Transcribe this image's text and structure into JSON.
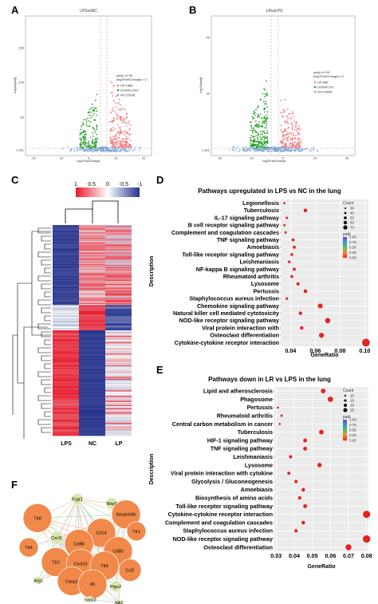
{
  "panels": {
    "a": "A",
    "b": "B",
    "c": "C",
    "d": "D",
    "e": "E",
    "f": "F"
  },
  "volcano_a": {
    "title": "LPSvsNC",
    "xlabel": "log2FoldChange",
    "ylabel": "-log10(padj)",
    "legend_title": [
      "padj<=0.05",
      "|log2FoldChange|>=1"
    ],
    "legend": [
      "UP:1886",
      "DOWN:1401",
      "NO:23938"
    ],
    "yticks": [
      "1.301",
      "50",
      "100",
      "150"
    ],
    "xticks": [
      "-20",
      "-10",
      "0",
      "10",
      "20"
    ],
    "colors": {
      "up": "#f08080",
      "down": "#2ca02c",
      "no": "#7fa8d8"
    }
  },
  "volcano_b": {
    "title": "LRvsLPS",
    "xlabel": "log2FoldChange",
    "ylabel": "-log10(padj)",
    "legend_title": [
      "padj<=0.05",
      "|log2FoldChange|>=1"
    ],
    "legend": [
      "UP:686",
      "DOWN:791",
      "NO:25665"
    ],
    "yticks": [
      "1.301",
      "20",
      "40"
    ],
    "xticks": [
      "-20",
      "-10",
      "0",
      "10",
      "20"
    ],
    "colors": {
      "up": "#f08080",
      "down": "#2ca02c",
      "no": "#7fa8d8"
    }
  },
  "heatmap": {
    "colorbar_ticks": [
      "1",
      "0.5",
      "0",
      "-0.5",
      "-1"
    ],
    "columns": [
      "LPS",
      "NC",
      "LP"
    ]
  },
  "chart_data": [
    {
      "type": "scatter",
      "title": "Pathways upregulated in LPS vs NC in the lung",
      "xlabel": "GeneRatio",
      "ylabel": "Description",
      "xticks": [
        "0.04",
        "0.06",
        "0.08",
        "0.10"
      ],
      "xlim": [
        0.032,
        0.103
      ],
      "legend_count_title": "Count",
      "legend_count": [
        "30",
        "40",
        "50",
        "60",
        "70"
      ],
      "legend_padj_title": "padj",
      "legend_padj": [
        "1.00",
        "0.75",
        "0.50",
        "0.25",
        "0.00"
      ],
      "categories": [
        "Legionellosis",
        "Tuberculosis",
        "IL-17 signaling pathway",
        "B cell receptor signaling pathway",
        "Complement and coagulation cascades",
        "TNF signaling pathway",
        "Amoebiasis",
        "Toll-like receptor signaling pathway",
        "Leishmaniasis",
        "NF-kappa B signaling pathway",
        "Rheumatoid arthritis",
        "Lysosome",
        "Pertussis",
        "Staphylococcus aureus infection",
        "Chemokine signaling pathway",
        "Natural killer cell mediated cytotoxicity",
        "NOD-like receptor signaling pathway",
        "Viral protein interaction with",
        "Osteoclast differentiation",
        "Cytokine-cytokine receptor interaction"
      ],
      "x": [
        0.035,
        0.052,
        0.037,
        0.035,
        0.036,
        0.042,
        0.043,
        0.041,
        0.039,
        0.043,
        0.041,
        0.046,
        0.052,
        0.037,
        0.064,
        0.048,
        0.07,
        0.049,
        0.065,
        0.101
      ],
      "count": [
        26,
        40,
        28,
        27,
        27,
        33,
        34,
        32,
        30,
        34,
        32,
        36,
        40,
        29,
        50,
        38,
        55,
        38,
        52,
        78
      ]
    },
    {
      "type": "scatter",
      "title": "Pathways down in LR vs LPS in the lung",
      "xlabel": "GeneRatio",
      "ylabel": "Description",
      "xticks": [
        "0.03",
        "0.04",
        "0.05",
        "0.06",
        "0.07",
        "0.08"
      ],
      "xlim": [
        0.029,
        0.081
      ],
      "legend_count_title": "Count",
      "legend_count": [
        "10",
        "15",
        "20",
        "25"
      ],
      "legend_padj_title": "padj",
      "legend_padj": [
        "1.00",
        "0.75",
        "0.50",
        "0.25",
        "0.00"
      ],
      "categories": [
        "Lipid and atherosclerosis",
        "Phagosome",
        "Pertussis",
        "Rheumatoid arthritis",
        "Central carbon metabolism in cancer",
        "Tuberculosis",
        "HIF-1 signaling pathway",
        "TNF signaling pathway",
        "Leishmaniasis",
        "Lysosome",
        "Viral protein interaction with cytokine",
        "Glycolysis / Gluconeogenesis",
        "Amoebiasis",
        "Biosynthesis of amino acids",
        "Toll-like receptor signaling pathway",
        "Cytokine-cytokine receptor interaction",
        "Complement and coagulation cascades",
        "Staphylococcus aureus infection",
        "NOD-like receptor signaling pathway",
        "Osteoclast differentiation"
      ],
      "x": [
        0.056,
        0.06,
        0.031,
        0.033,
        0.032,
        0.055,
        0.046,
        0.046,
        0.038,
        0.054,
        0.037,
        0.041,
        0.045,
        0.043,
        0.046,
        0.08,
        0.045,
        0.041,
        0.08,
        0.07
      ],
      "count": [
        17,
        20,
        7,
        8,
        7,
        17,
        14,
        14,
        11,
        16,
        11,
        12,
        13,
        12,
        14,
        27,
        13,
        12,
        28,
        22
      ]
    }
  ],
  "network": {
    "nodes": [
      "Fcgr1",
      "Nlrp3",
      "Tlr8",
      "Serpinb9b",
      "Cd14",
      "Tlr1",
      "Cxcl1",
      "Cd86",
      "Tlr6",
      "Cd80",
      "Ccl2",
      "Tlr2",
      "Cxcl10",
      "Tlr9",
      "Arg1",
      "Casp1",
      "Il6",
      "Ptgs2",
      "Socs3",
      "Jak2"
    ]
  }
}
